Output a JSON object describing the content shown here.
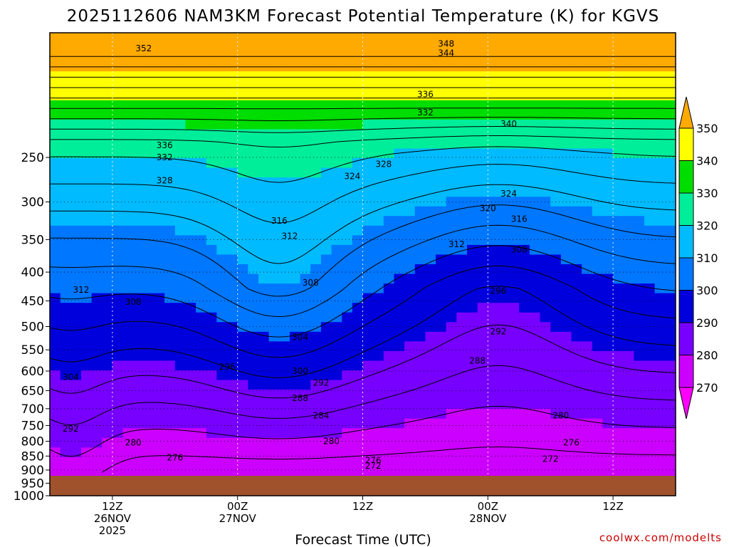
{
  "chart_data": {
    "type": "heatmap",
    "title": "2025112606 NAM3KM Forecast Potential Temperature (K) for KGVS",
    "xlabel": "Forecast Time (UTC)",
    "ylabel": "",
    "y_ticks": [
      "250",
      "300",
      "350",
      "400",
      "450",
      "500",
      "550",
      "600",
      "650",
      "700",
      "750",
      "800",
      "850",
      "900",
      "950",
      "1000"
    ],
    "ylim": [
      1000,
      150
    ],
    "x_ticks": [
      {
        "hour": 6,
        "line1": "12Z",
        "line2": "26NOV",
        "line3": "2025"
      },
      {
        "hour": 18,
        "line1": "00Z",
        "line2": "27NOV",
        "line3": ""
      },
      {
        "hour": 30,
        "line1": "12Z",
        "line2": "",
        "line3": ""
      },
      {
        "hour": 42,
        "line1": "00Z",
        "line2": "28NOV",
        "line3": ""
      },
      {
        "hour": 54,
        "line1": "12Z",
        "line2": "",
        "line3": ""
      }
    ],
    "xlim": [
      0,
      60
    ],
    "colorbar": {
      "units": "K",
      "labels": [
        "350",
        "340",
        "330",
        "320",
        "310",
        "300",
        "290",
        "280",
        "270"
      ],
      "colors": [
        "#ffaa00",
        "#ffff00",
        "#00dd00",
        "#00ee99",
        "#00bbff",
        "#0077ff",
        "#0000dd",
        "#7700ff",
        "#cc00ff",
        "#ff00ff"
      ]
    },
    "contour_labels": [
      {
        "text": "352",
        "hour": 9,
        "p": 160
      },
      {
        "text": "348",
        "hour": 38,
        "p": 157
      },
      {
        "text": "344",
        "hour": 38,
        "p": 163
      },
      {
        "text": "340",
        "hour": 44,
        "p": 218
      },
      {
        "text": "336",
        "hour": 11,
        "p": 238
      },
      {
        "text": "336",
        "hour": 36,
        "p": 193
      },
      {
        "text": "332",
        "hour": 11,
        "p": 250
      },
      {
        "text": "332",
        "hour": 36,
        "p": 208
      },
      {
        "text": "328",
        "hour": 11,
        "p": 275
      },
      {
        "text": "328",
        "hour": 32,
        "p": 257
      },
      {
        "text": "324",
        "hour": 29,
        "p": 270
      },
      {
        "text": "324",
        "hour": 44,
        "p": 290
      },
      {
        "text": "320",
        "hour": 42,
        "p": 308
      },
      {
        "text": "316",
        "hour": 22,
        "p": 324
      },
      {
        "text": "316",
        "hour": 45,
        "p": 322
      },
      {
        "text": "312",
        "hour": 23,
        "p": 345
      },
      {
        "text": "312",
        "hour": 39,
        "p": 357
      },
      {
        "text": "312",
        "hour": 3,
        "p": 430
      },
      {
        "text": "308",
        "hour": 45,
        "p": 365
      },
      {
        "text": "308",
        "hour": 25,
        "p": 418
      },
      {
        "text": "308",
        "hour": 8,
        "p": 452
      },
      {
        "text": "304",
        "hour": 24,
        "p": 522
      },
      {
        "text": "304",
        "hour": 2,
        "p": 615
      },
      {
        "text": "300",
        "hour": 24,
        "p": 600
      },
      {
        "text": "296",
        "hour": 17,
        "p": 590
      },
      {
        "text": "296",
        "hour": 43,
        "p": 432
      },
      {
        "text": "292",
        "hour": 26,
        "p": 630
      },
      {
        "text": "292",
        "hour": 43,
        "p": 510
      },
      {
        "text": "292",
        "hour": 2,
        "p": 760
      },
      {
        "text": "288",
        "hour": 24,
        "p": 670
      },
      {
        "text": "288",
        "hour": 41,
        "p": 575
      },
      {
        "text": "284",
        "hour": 26,
        "p": 720
      },
      {
        "text": "280",
        "hour": 27,
        "p": 800
      },
      {
        "text": "280",
        "hour": 8,
        "p": 805
      },
      {
        "text": "280",
        "hour": 49,
        "p": 720
      },
      {
        "text": "276",
        "hour": 12,
        "p": 855
      },
      {
        "text": "276",
        "hour": 31,
        "p": 865
      },
      {
        "text": "276",
        "hour": 50,
        "p": 805
      },
      {
        "text": "272",
        "hour": 31,
        "p": 885
      },
      {
        "text": "272",
        "hour": 48,
        "p": 860
      }
    ]
  },
  "credit": "coolwx.com/modelts"
}
